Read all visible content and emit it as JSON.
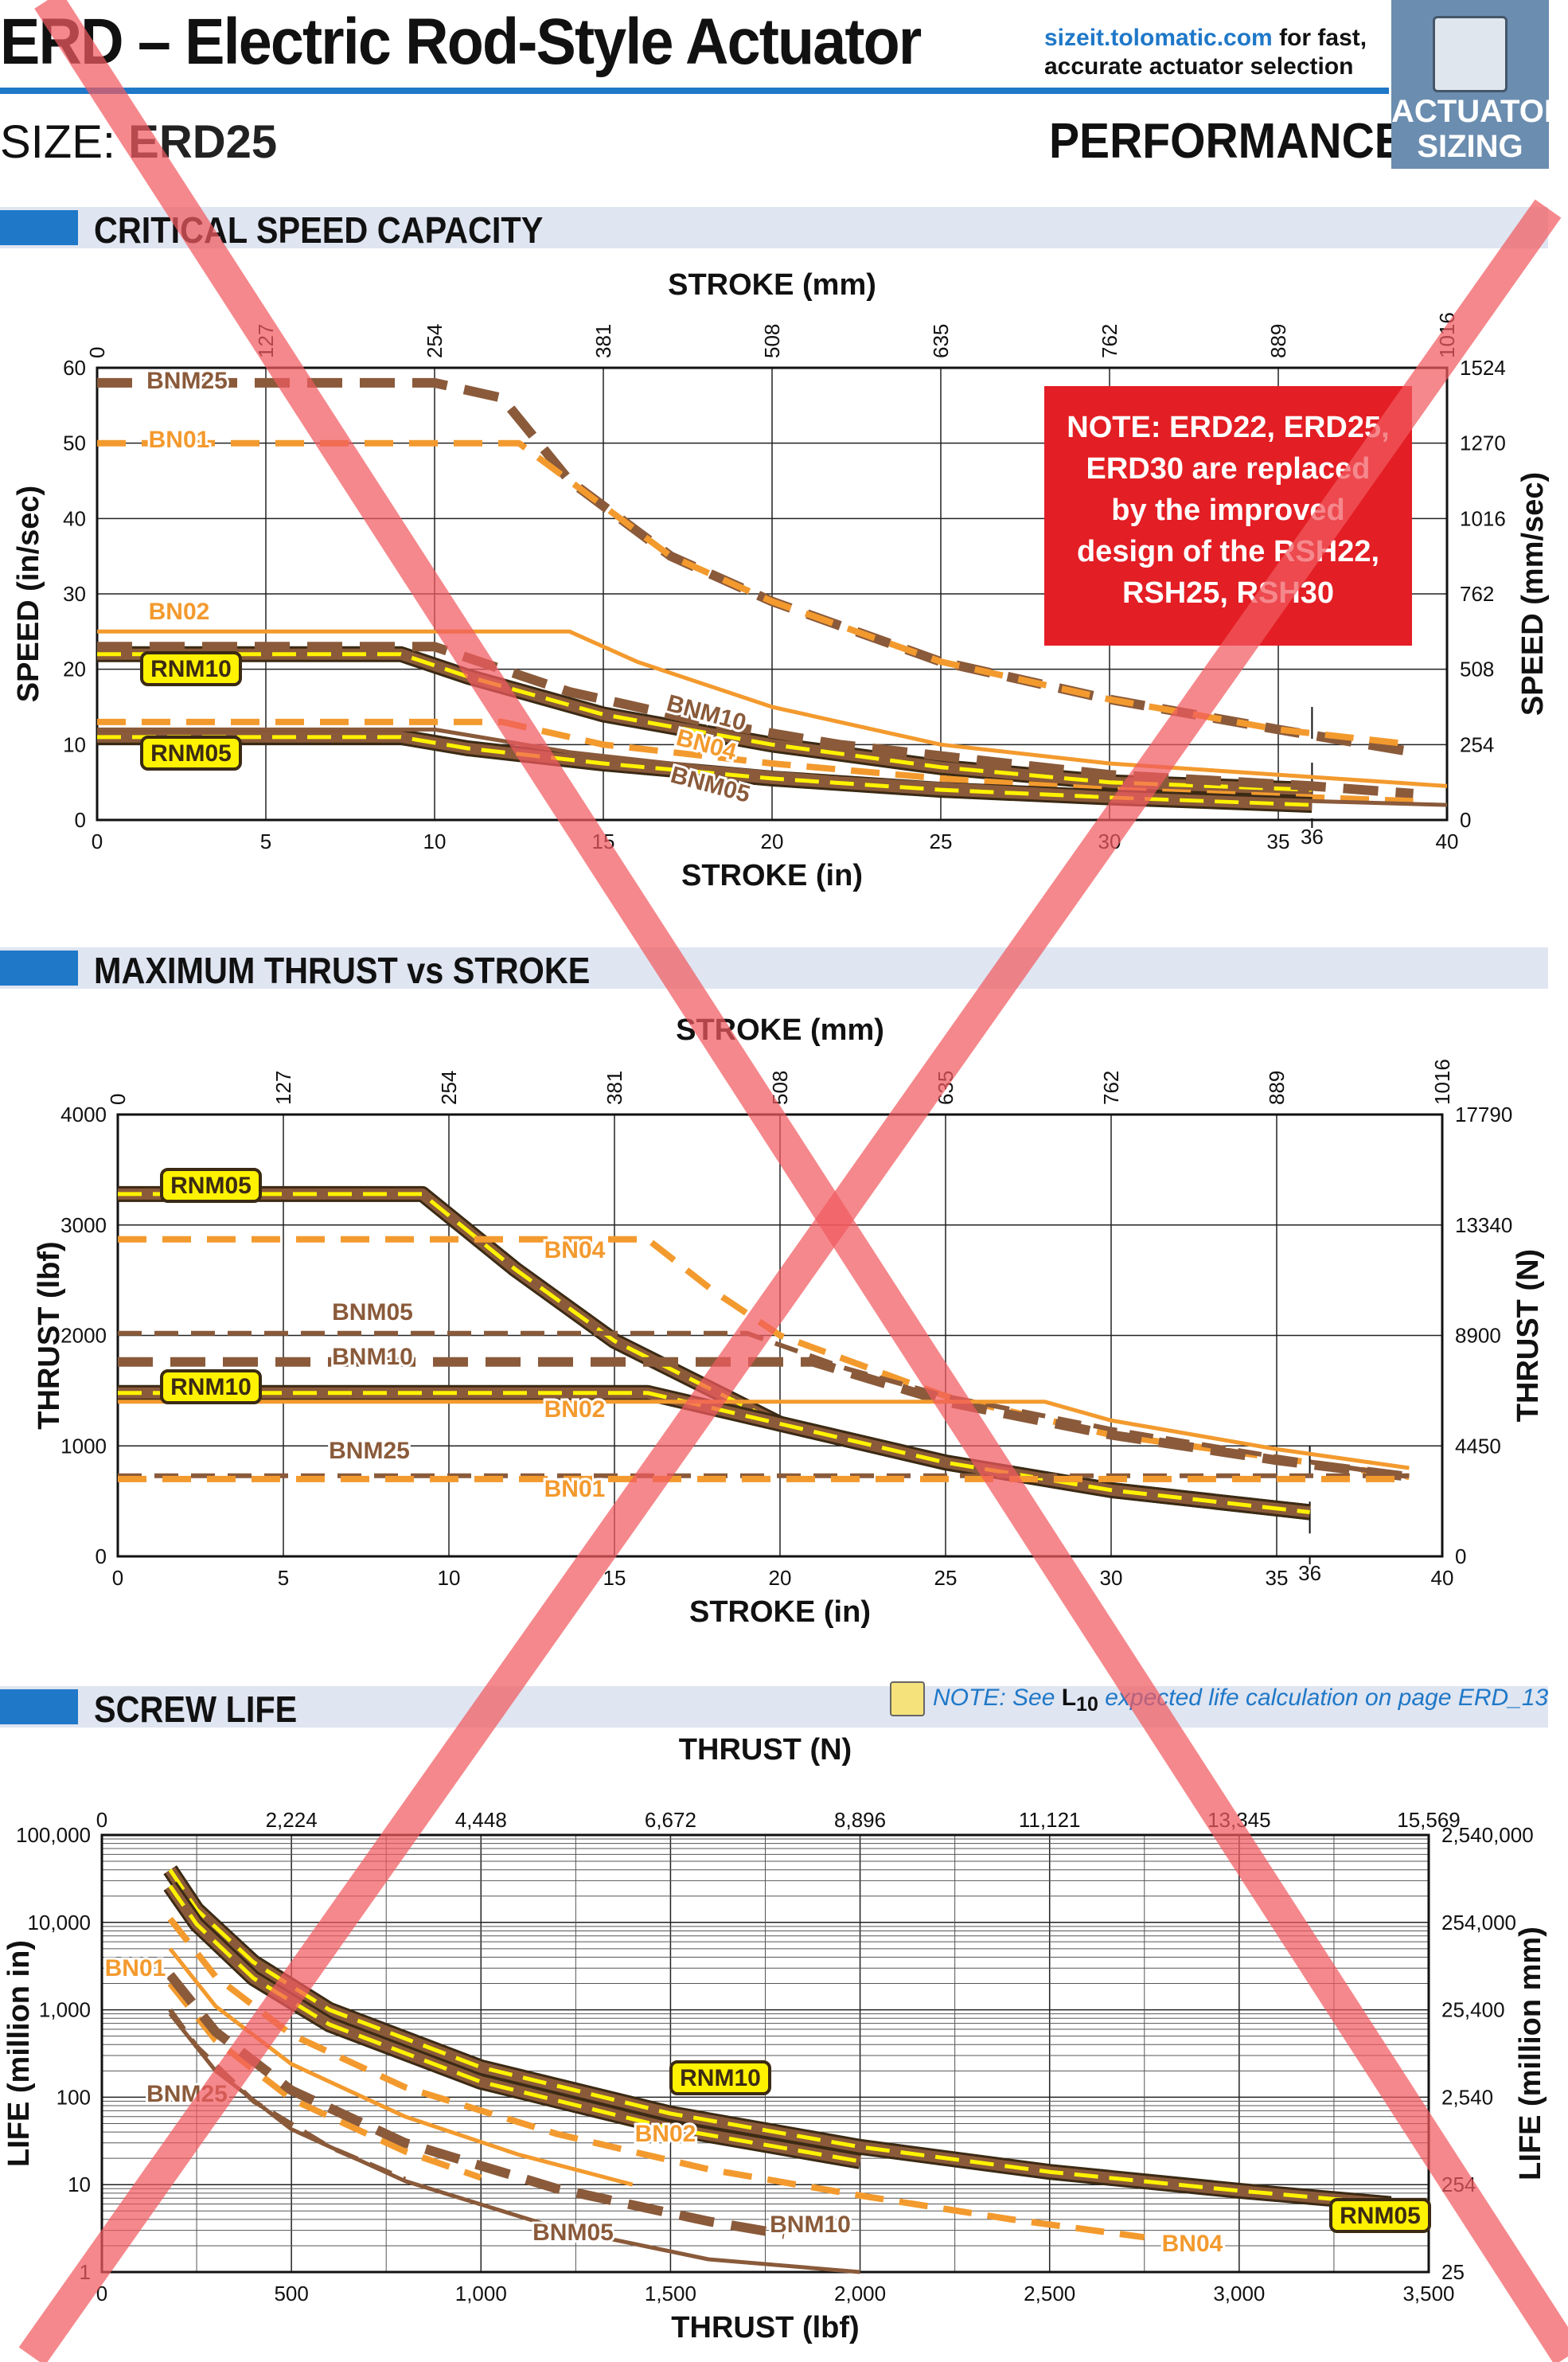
{
  "header": {
    "title": "ERD – Electric Rod-Style Actuator",
    "size_prefix": "SIZE:",
    "size_value": "ERD25",
    "performance": "PERFORMANCE",
    "site_link": "sizeit.tolomatic.com",
    "site_rest1": " for fast,",
    "site_rest2": "accurate actuator selection",
    "badge_line1": "ACTUATOR",
    "badge_line2": "SIZING"
  },
  "sections": {
    "speed": "CRITICAL SPEED CAPACITY",
    "thrust": "MAXIMUM THRUST vs STROKE",
    "life": "SCREW LIFE"
  },
  "notes": {
    "replaced": [
      "NOTE: ERD22, ERD25,",
      "ERD30 are replaced",
      "by the improved",
      "design of the RSH22,",
      "RSH25, RSH30"
    ],
    "life_pre": "NOTE: See ",
    "life_l": "L",
    "life_sub": "10",
    "life_post": " expected life calculation on page ERD_13"
  },
  "colors": {
    "brown": "#8a5a3a",
    "orange": "#f39a2e",
    "yellow": "#fff200",
    "dark": "#3b2a14",
    "red_cross": "#f15a5f",
    "accent": "#1f78c8"
  },
  "chart_data": [
    {
      "type": "line",
      "title": "CRITICAL SPEED CAPACITY",
      "xlabel": "STROKE (in)",
      "x2label": "STROKE (mm)",
      "ylabel": "SPEED (in/sec)",
      "y2label": "SPEED (mm/sec)",
      "xlim": [
        0,
        40
      ],
      "ylim": [
        0,
        60
      ],
      "xticks": [
        "0",
        "5",
        "10",
        "15",
        "20",
        "25",
        "30",
        "35",
        "40"
      ],
      "x2ticks": [
        "0",
        "127",
        "254",
        "381",
        "508",
        "635",
        "762",
        "889",
        "1016"
      ],
      "yticks": [
        "0",
        "10",
        "20",
        "30",
        "40",
        "50",
        "60"
      ],
      "y2ticks": [
        "0",
        "254",
        "508",
        "762",
        "1016",
        "1270",
        "1524"
      ],
      "max_stroke_mark": "36",
      "series": [
        {
          "name": "BNM25",
          "label": "BNM25",
          "style": "dash-brown",
          "x": [
            0,
            10,
            12,
            14,
            17,
            20,
            25,
            30,
            35,
            39
          ],
          "y": [
            58,
            58,
            56,
            45,
            35,
            29,
            21,
            16,
            12,
            9
          ]
        },
        {
          "name": "BN01",
          "label": "BN01",
          "style": "dash-orange",
          "x": [
            0,
            12.5,
            14,
            17,
            20,
            25,
            30,
            35,
            39
          ],
          "y": [
            50,
            50,
            45,
            35,
            29,
            21,
            16,
            12,
            10
          ]
        },
        {
          "name": "BN02",
          "label": "BN02",
          "style": "solid-orange",
          "x": [
            0,
            14,
            16,
            20,
            25,
            30,
            35,
            40
          ],
          "y": [
            25,
            25,
            21,
            15,
            10,
            7.5,
            6,
            4.5
          ]
        },
        {
          "name": "RNM10",
          "label": "RNM10",
          "style": "rnm",
          "x": [
            0,
            9,
            11,
            15,
            20,
            25,
            30,
            36
          ],
          "y": [
            22,
            22,
            19,
            14,
            10,
            7,
            5,
            4
          ]
        },
        {
          "name": "BNM10",
          "label": "BNM10",
          "style": "dash-brown",
          "x": [
            0,
            10,
            14,
            18,
            22,
            26,
            30,
            36,
            39
          ],
          "y": [
            23,
            23,
            17,
            13,
            10,
            8,
            6,
            4.5,
            3.5
          ]
        },
        {
          "name": "BN04",
          "label": "BN04",
          "style": "dash-orange",
          "x": [
            0,
            12,
            15,
            20,
            25,
            30,
            36,
            39
          ],
          "y": [
            13,
            13,
            10,
            7.5,
            5.5,
            4,
            3,
            2.5
          ]
        },
        {
          "name": "RNM05",
          "label": "RNM05",
          "style": "rnm",
          "x": [
            0,
            9,
            11,
            15,
            20,
            25,
            30,
            36
          ],
          "y": [
            11,
            11,
            9.5,
            7.5,
            5.5,
            4,
            3,
            2
          ]
        },
        {
          "name": "BNM05",
          "label": "BNM05",
          "style": "solid-brown",
          "x": [
            0,
            10,
            14,
            18,
            22,
            26,
            30,
            36,
            40
          ],
          "y": [
            12,
            12,
            9,
            7,
            5.5,
            4.5,
            3.5,
            2.5,
            2
          ]
        }
      ]
    },
    {
      "type": "line",
      "title": "MAXIMUM THRUST vs STROKE",
      "xlabel": "STROKE (in)",
      "x2label": "STROKE (mm)",
      "ylabel": "THRUST (lbf)",
      "y2label": "THRUST (N)",
      "xlim": [
        0,
        40
      ],
      "ylim": [
        0,
        4000
      ],
      "xticks": [
        "0",
        "5",
        "10",
        "15",
        "20",
        "25",
        "30",
        "35",
        "40"
      ],
      "x2ticks": [
        "0",
        "127",
        "254",
        "381",
        "508",
        "635",
        "762",
        "889",
        "1016"
      ],
      "yticks": [
        "0",
        "1000",
        "2000",
        "3000",
        "4000"
      ],
      "y2ticks": [
        "0",
        "4450",
        "8900",
        "13340",
        "17790"
      ],
      "max_stroke_mark": "36",
      "series": [
        {
          "name": "RNM05",
          "label": "RNM05",
          "style": "rnm",
          "x": [
            0,
            9.2,
            12,
            15,
            20,
            25,
            30,
            36
          ],
          "y": [
            3280,
            3280,
            2600,
            1950,
            1200,
            850,
            600,
            400
          ]
        },
        {
          "name": "BN04",
          "label": "BN04",
          "style": "dash-orange",
          "x": [
            0,
            16,
            18,
            20,
            25,
            30,
            36,
            39
          ],
          "y": [
            2870,
            2870,
            2400,
            2000,
            1450,
            1100,
            850,
            720
          ]
        },
        {
          "name": "BNM05",
          "label": "BNM05",
          "style": "dash-brown-thin",
          "x": [
            0,
            19,
            22,
            25,
            30,
            35,
            39
          ],
          "y": [
            2020,
            2020,
            1700,
            1450,
            1150,
            900,
            720
          ]
        },
        {
          "name": "BNM10",
          "label": "BNM10",
          "style": "dash-brown",
          "x": [
            0,
            21,
            25,
            30,
            35,
            39
          ],
          "y": [
            1760,
            1760,
            1400,
            1100,
            870,
            720
          ]
        },
        {
          "name": "RNM10",
          "label": "RNM10",
          "style": "rnm",
          "x": [
            0,
            16,
            20,
            25,
            30,
            36
          ],
          "y": [
            1480,
            1480,
            1200,
            850,
            600,
            400
          ]
        },
        {
          "name": "BN02",
          "label": "BN02",
          "style": "solid-orange",
          "x": [
            0,
            28,
            30,
            35,
            39
          ],
          "y": [
            1400,
            1400,
            1230,
            970,
            800
          ]
        },
        {
          "name": "BNM25",
          "label": "BNM25",
          "style": "dash-brown-thin",
          "x": [
            0,
            39
          ],
          "y": [
            730,
            730
          ]
        },
        {
          "name": "BN01",
          "label": "BN01",
          "style": "dash-orange",
          "x": [
            0,
            39
          ],
          "y": [
            700,
            700
          ]
        }
      ]
    },
    {
      "type": "line",
      "title": "SCREW LIFE",
      "xlabel": "THRUST (lbf)",
      "x2label": "THRUST (N)",
      "ylabel": "LIFE (million in)",
      "y2label": "LIFE (million mm)",
      "xlim": [
        0,
        3500
      ],
      "ylim": [
        1,
        100000
      ],
      "yscale": "log",
      "xticks": [
        "0",
        "500",
        "1,000",
        "1,500",
        "2,000",
        "2,500",
        "3,000",
        "3,500"
      ],
      "x2ticks": [
        "0",
        "2,224",
        "4,448",
        "6,672",
        "8,896",
        "11,121",
        "13,345",
        "15,569"
      ],
      "yticks": [
        "1",
        "10",
        "100",
        "1,000",
        "10,000",
        "100,000"
      ],
      "y2ticks": [
        "25",
        "254",
        "2,540",
        "25,400",
        "254,000",
        "2,540,000"
      ],
      "series": [
        {
          "name": "RNM05",
          "label": "RNM05",
          "style": "rnm",
          "x": [
            180,
            250,
            400,
            600,
            1000,
            1500,
            2000,
            2500,
            3000,
            3400
          ],
          "y": [
            40000,
            14000,
            3500,
            1000,
            220,
            65,
            27,
            14,
            8.5,
            6
          ]
        },
        {
          "name": "RNM10",
          "label": "RNM10",
          "style": "rnm",
          "x": [
            180,
            250,
            400,
            600,
            1000,
            1500,
            2000
          ],
          "y": [
            26000,
            9500,
            2300,
            680,
            150,
            44,
            18.5
          ]
        },
        {
          "name": "BN04",
          "label": "BN04",
          "style": "dash-orange",
          "x": [
            180,
            300,
            500,
            800,
            1200,
            1600,
            2000,
            2400,
            2750
          ],
          "y": [
            11000,
            2400,
            520,
            130,
            38,
            15,
            7.5,
            4,
            2.5
          ]
        },
        {
          "name": "BN02",
          "label": "BN02",
          "style": "solid-orange",
          "x": [
            180,
            300,
            500,
            800,
            1100,
            1400
          ],
          "y": [
            5000,
            1100,
            240,
            60,
            22,
            10
          ]
        },
        {
          "name": "BN01",
          "label": "BN01",
          "style": "dash-orange",
          "x": [
            180,
            300,
            500,
            800,
            1000
          ],
          "y": [
            2000,
            450,
            95,
            24,
            12
          ]
        },
        {
          "name": "BNM10",
          "label": "BNM10",
          "style": "dash-brown",
          "x": [
            180,
            300,
            500,
            800,
            1200,
            1600,
            1800
          ],
          "y": [
            2500,
            560,
            120,
            30,
            9,
            3.8,
            2.7
          ]
        },
        {
          "name": "BNM25",
          "label": "BNM25",
          "style": "dash-brown-thin",
          "x": [
            180,
            250,
            400,
            600,
            800
          ],
          "y": [
            1000,
            380,
            90,
            27,
            11.5
          ]
        },
        {
          "name": "BNM05",
          "label": "BNM05",
          "style": "solid-brown",
          "x": [
            180,
            300,
            500,
            800,
            1200,
            1600,
            2000
          ],
          "y": [
            900,
            200,
            43,
            11,
            3.2,
            1.4,
            1
          ]
        }
      ]
    }
  ]
}
